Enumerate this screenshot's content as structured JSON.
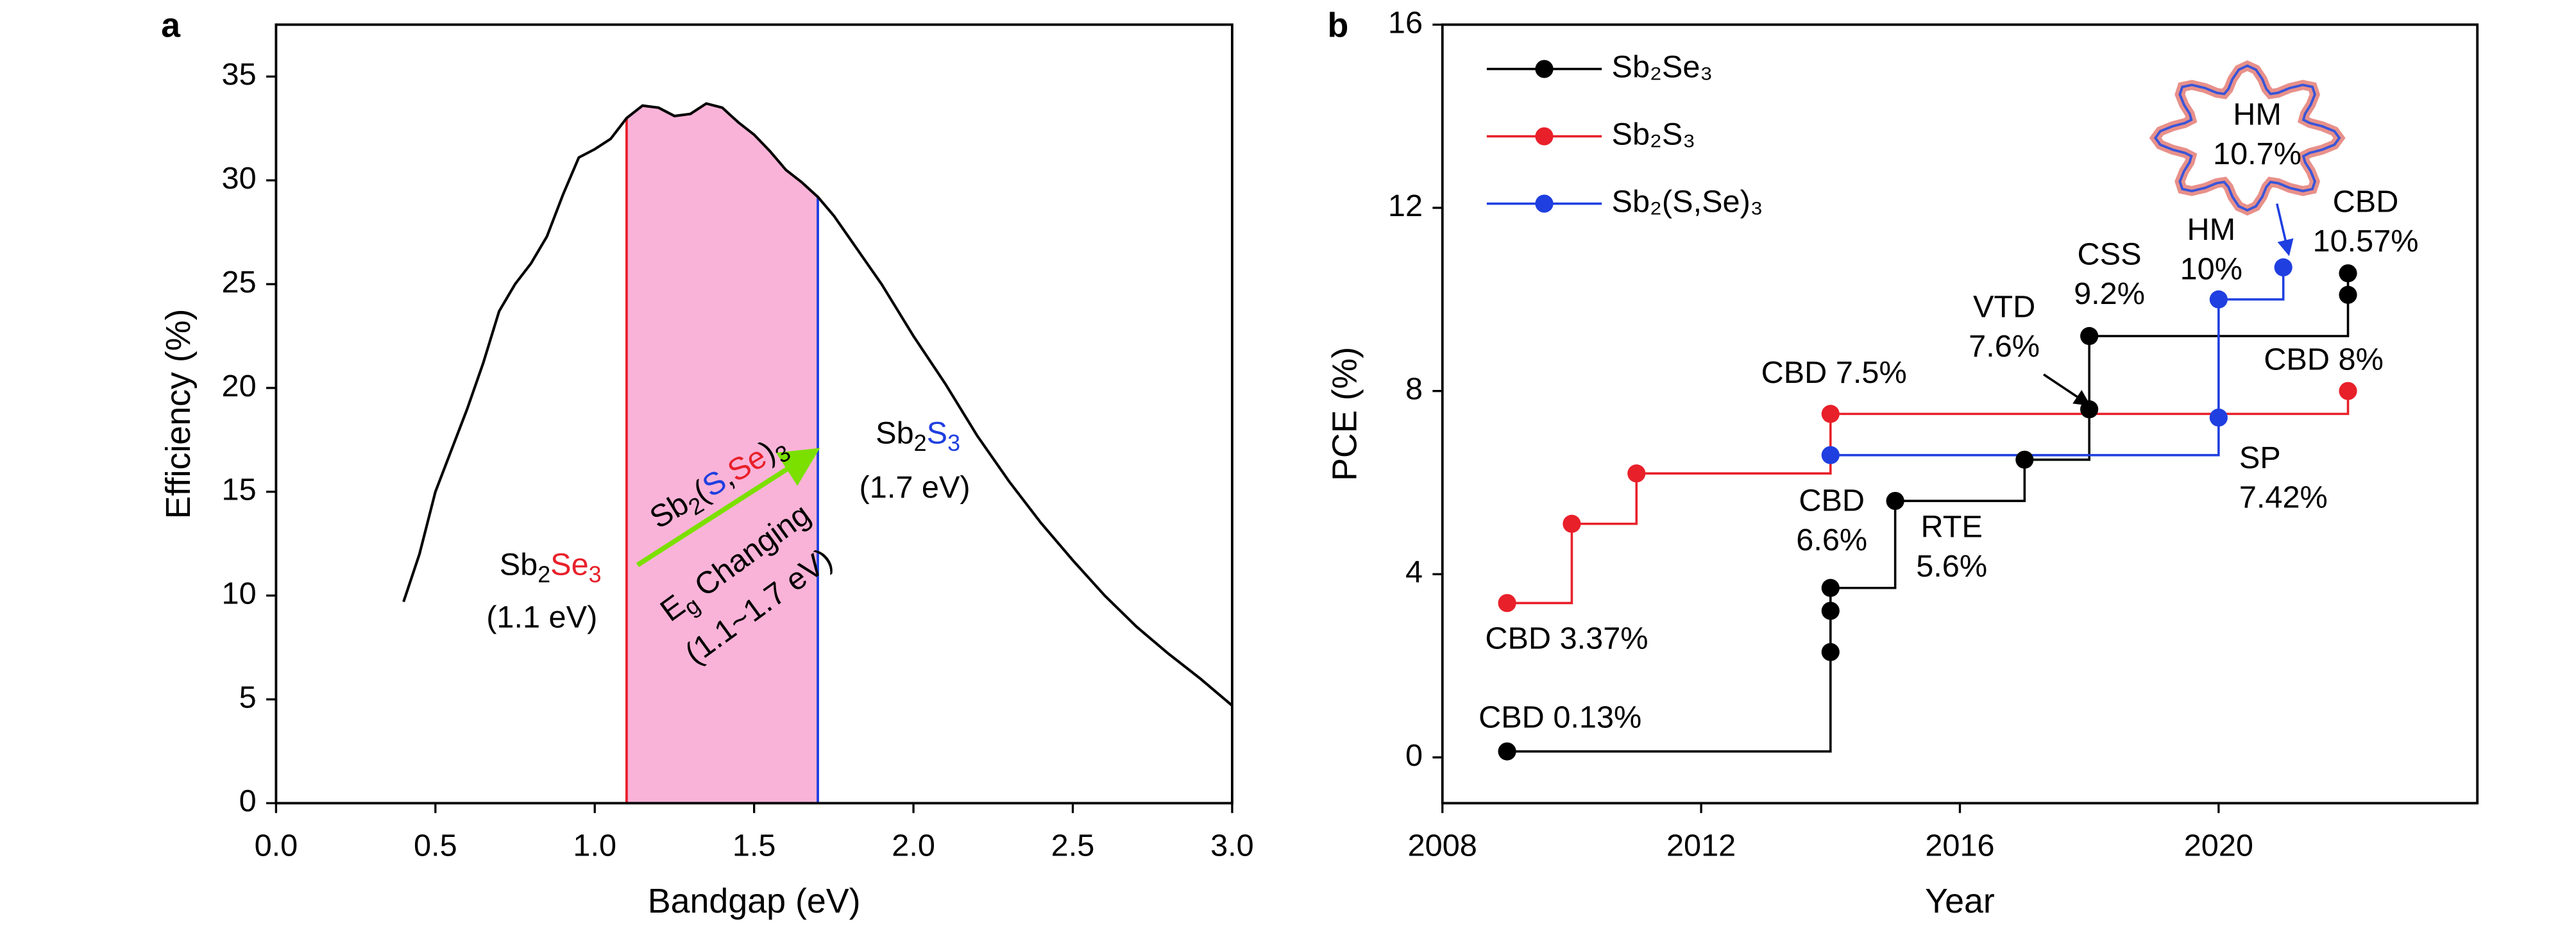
{
  "chart_data": [
    {
      "type": "line",
      "panel_label": "a",
      "xlabel": "Bandgap (eV)",
      "ylabel": "Efficiency (%)",
      "x": [
        0.4,
        0.45,
        0.5,
        0.55,
        0.6,
        0.65,
        0.7,
        0.75,
        0.8,
        0.85,
        0.9,
        0.95,
        1.0,
        1.05,
        1.1,
        1.15,
        1.2,
        1.25,
        1.3,
        1.35,
        1.4,
        1.45,
        1.5,
        1.55,
        1.6,
        1.65,
        1.7,
        1.75,
        1.8,
        1.9,
        2.0,
        2.1,
        2.2,
        2.3,
        2.4,
        2.5,
        2.6,
        2.7,
        2.8,
        2.9,
        3.0
      ],
      "values": [
        9.7,
        12,
        15,
        17,
        19,
        21.2,
        23.7,
        25,
        26,
        27.3,
        29.3,
        31.1,
        31.5,
        32,
        33,
        33.6,
        33.5,
        33.1,
        33.2,
        33.7,
        33.5,
        32.8,
        32.2,
        31.4,
        30.5,
        29.9,
        29.2,
        28.3,
        27.2,
        25,
        22.5,
        20.2,
        17.7,
        15.5,
        13.5,
        11.7,
        10,
        8.5,
        7.2,
        6,
        4.7
      ],
      "color": "#000000",
      "highlight_band": {
        "x": [
          1.1,
          1.7
        ],
        "color": "#f9b3d8",
        "edge_colors": [
          "#e8202a",
          "#1f3fe0"
        ]
      },
      "xlim": [
        0,
        3
      ],
      "ylim": [
        0,
        37.5
      ],
      "xticks": [
        {
          "value": 0,
          "label": "0.0"
        },
        0.5,
        {
          "value": 1,
          "label": "1.0"
        },
        1.5,
        {
          "value": 2,
          "label": "2.0"
        },
        2.5,
        {
          "value": 3,
          "label": "3.0"
        }
      ],
      "yticks": [
        0,
        5,
        10,
        15,
        20,
        25,
        30,
        35
      ],
      "annotations": [
        [
          {
            "text": "Sb"
          },
          {
            "text": "2",
            "sub": true
          },
          {
            "text": "Se",
            "color": "#e8202a"
          },
          {
            "text": "3",
            "sub": true,
            "color": "#e8202a"
          }
        ],
        [
          {
            "text": "(1.1 eV)"
          }
        ],
        [
          {
            "text": "Sb"
          },
          {
            "text": "2",
            "sub": true
          },
          {
            "text": "S",
            "color": "#1f3fe0"
          },
          {
            "text": "3",
            "sub": true,
            "color": "#1f3fe0"
          }
        ],
        [
          {
            "text": "(1.7 eV)"
          }
        ],
        [
          {
            "text": "Sb"
          },
          {
            "text": "2",
            "sub": true
          },
          {
            "text": "("
          },
          {
            "text": "S",
            "color": "#1f3fe0"
          },
          {
            "text": ","
          },
          {
            "text": "Se",
            "color": "#e8202a"
          },
          {
            "text": ")"
          },
          {
            "text": "3",
            "sub": true
          }
        ],
        [
          {
            "text": "E"
          },
          {
            "text": "g",
            "sub": true
          },
          {
            "text": " Changing"
          }
        ],
        [
          {
            "text": "(1.1~1.7 eV)"
          }
        ]
      ]
    },
    {
      "type": "step",
      "panel_label": "b",
      "xlabel": "Year",
      "ylabel": "PCE (%)",
      "series": [
        {
          "name": "Sb₂Se₃",
          "color": "#000000",
          "x": [
            2009,
            2014,
            2014,
            2014,
            2015,
            2017,
            2018,
            2018,
            2022,
            2022
          ],
          "values": [
            0.13,
            2.3,
            3.2,
            3.7,
            5.6,
            6.5,
            7.6,
            9.2,
            10.1,
            10.57
          ]
        },
        {
          "name": "Sb₂S₃",
          "color": "#e8202a",
          "x": [
            2009,
            2010,
            2011,
            2014,
            2022
          ],
          "values": [
            3.37,
            5.1,
            6.2,
            7.5,
            8.0
          ]
        },
        {
          "name": "Sb₂(S,Se)₃",
          "color": "#1f3fe0",
          "x": [
            2014,
            2020,
            2020,
            2021
          ],
          "values": [
            6.6,
            7.42,
            10,
            10.7
          ]
        }
      ],
      "xlim": [
        2008,
        2024
      ],
      "ylim": [
        -1,
        16
      ],
      "xticks": [
        2008,
        2012,
        2016,
        2020
      ],
      "yticks": [
        0,
        4,
        8,
        12,
        16
      ],
      "legend": "upper left",
      "annotations": [
        {
          "lines": [
            "CBD 0.13%"
          ],
          "color": "#000000"
        },
        {
          "lines": [
            "CBD 3.37%"
          ],
          "color": "#e8202a"
        },
        {
          "lines": [
            "CBD 7.5%"
          ],
          "color": "#e8202a"
        },
        {
          "lines": [
            "CBD",
            "6.6%"
          ],
          "color": "#1f3fe0"
        },
        {
          "lines": [
            "RTE",
            "5.6%"
          ],
          "color": "#000000"
        },
        {
          "lines": [
            "VTD",
            "7.6%"
          ],
          "color": "#000000"
        },
        {
          "lines": [
            "CSS",
            "9.2%"
          ],
          "color": "#000000"
        },
        {
          "lines": [
            "HM",
            "10%"
          ],
          "color": "#1f3fe0"
        },
        {
          "lines": [
            "CBD",
            "10.57%"
          ],
          "color": "#000000"
        },
        {
          "lines": [
            "CBD 8%"
          ],
          "color": "#e8202a"
        },
        {
          "lines": [
            "SP",
            "7.42%"
          ],
          "color": "#1f3fe0"
        },
        {
          "lines": [
            "HM",
            "10.7%"
          ],
          "color": "#1f3fe0"
        }
      ]
    }
  ]
}
